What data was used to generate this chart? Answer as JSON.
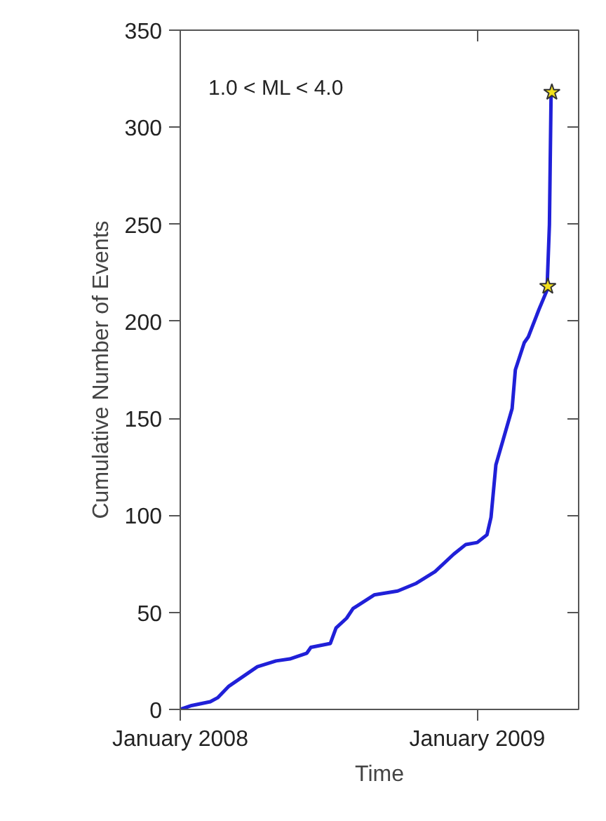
{
  "chart_data": {
    "type": "line",
    "xlabel": "Time",
    "ylabel": "Cumulative Number of Events",
    "annotations": [
      "1.0 < ML < 4.0"
    ],
    "xlim": [
      "2008-01-01",
      "2009-05-06"
    ],
    "xticks": [
      {
        "value": "2008-01-01",
        "label": "January 2008"
      },
      {
        "value": "2009-01-01",
        "label": "January 2009"
      }
    ],
    "ylim": [
      0,
      350
    ],
    "yticks": [
      0,
      50,
      100,
      150,
      200,
      250,
      300,
      350
    ],
    "grid": false,
    "series": [
      {
        "color": "#2020d8",
        "line_style": "solid",
        "marker": "none",
        "x": [
          "2008-01-01",
          "2008-01-15",
          "2008-02-07",
          "2008-02-16",
          "2008-03-01",
          "2008-04-05",
          "2008-04-28",
          "2008-05-15",
          "2008-06-05",
          "2008-06-10",
          "2008-07-04",
          "2008-07-11",
          "2008-07-24",
          "2008-08-01",
          "2008-08-27",
          "2008-09-25",
          "2008-10-18",
          "2008-11-10",
          "2008-12-03",
          "2008-12-18",
          "2009-01-01",
          "2009-01-13",
          "2009-01-18",
          "2009-01-24",
          "2009-02-02",
          "2009-02-13",
          "2009-02-17",
          "2009-02-28",
          "2009-03-05",
          "2009-03-18",
          "2009-03-28",
          "2009-03-31",
          "2009-04-02"
        ],
        "values": [
          0,
          2,
          4,
          6,
          12,
          22,
          25,
          26,
          29,
          32,
          34,
          42,
          47,
          52,
          59,
          61,
          65,
          71,
          80,
          85,
          86,
          90,
          99,
          126,
          139,
          155,
          175,
          189,
          192,
          206,
          216,
          250,
          316
        ]
      },
      {
        "type": "scatter",
        "marker": "star",
        "color": "#f2e01c",
        "x": [
          "2009-03-29",
          "2009-04-03"
        ],
        "values": [
          218,
          318
        ]
      }
    ]
  }
}
